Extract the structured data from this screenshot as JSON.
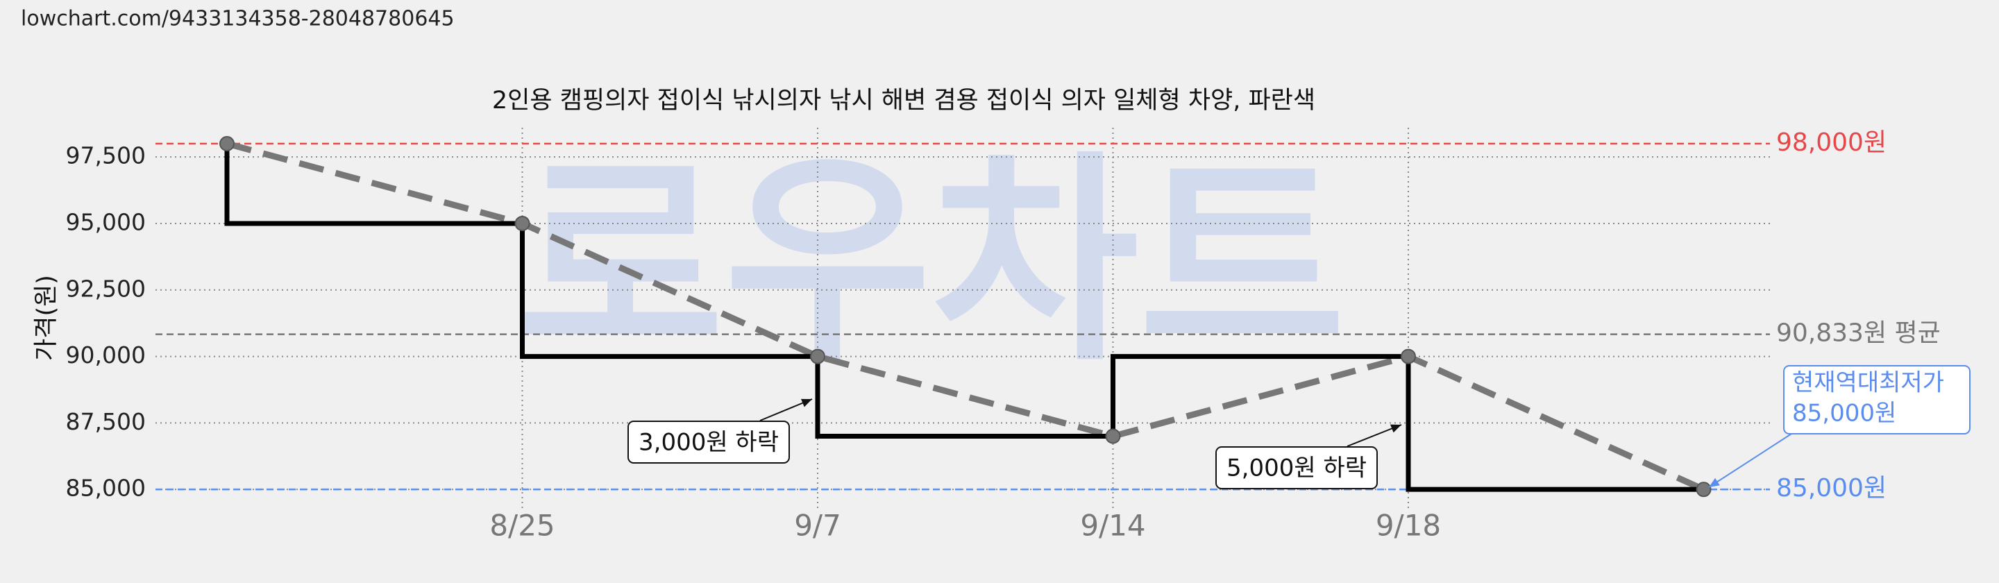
{
  "url": "lowchart.com/9433134358-28048780645",
  "chart_data": {
    "type": "step-line",
    "title": "2인용 캠핑의자 접이식 낚시의자 낚시 해변 겸용 접이식 의자 일체형 차양, 파란색",
    "ylabel": "가격(원)",
    "watermark": "로우차트",
    "categories": [
      null,
      "8/25",
      "9/7",
      "9/14",
      "9/18",
      null
    ],
    "values": [
      98000,
      95000,
      90000,
      87000,
      90000,
      85000
    ],
    "step_color": "#000000",
    "trend_color": "#777777",
    "ylim": [
      84300,
      98600
    ],
    "yticks": [
      {
        "value": 85000,
        "label": "85,000"
      },
      {
        "value": 87500,
        "label": "87,500"
      },
      {
        "value": 90000,
        "label": "90,000"
      },
      {
        "value": 92500,
        "label": "92,500"
      },
      {
        "value": 95000,
        "label": "95,000"
      },
      {
        "value": 97500,
        "label": "97,500"
      }
    ],
    "grid": true,
    "reference_lines": [
      {
        "value": 98000,
        "label": "98,000원",
        "color": "#e8474a"
      },
      {
        "value": 90833,
        "label": "90,833원 평균",
        "color": "#777777"
      },
      {
        "value": 85000,
        "label": "85,000원",
        "color": "#5b8def"
      }
    ],
    "annotations": [
      {
        "text": "3,000원 하락"
      },
      {
        "text": "5,000원 하락"
      },
      {
        "text": [
          "현재역대최저가",
          "85,000원"
        ]
      }
    ]
  }
}
